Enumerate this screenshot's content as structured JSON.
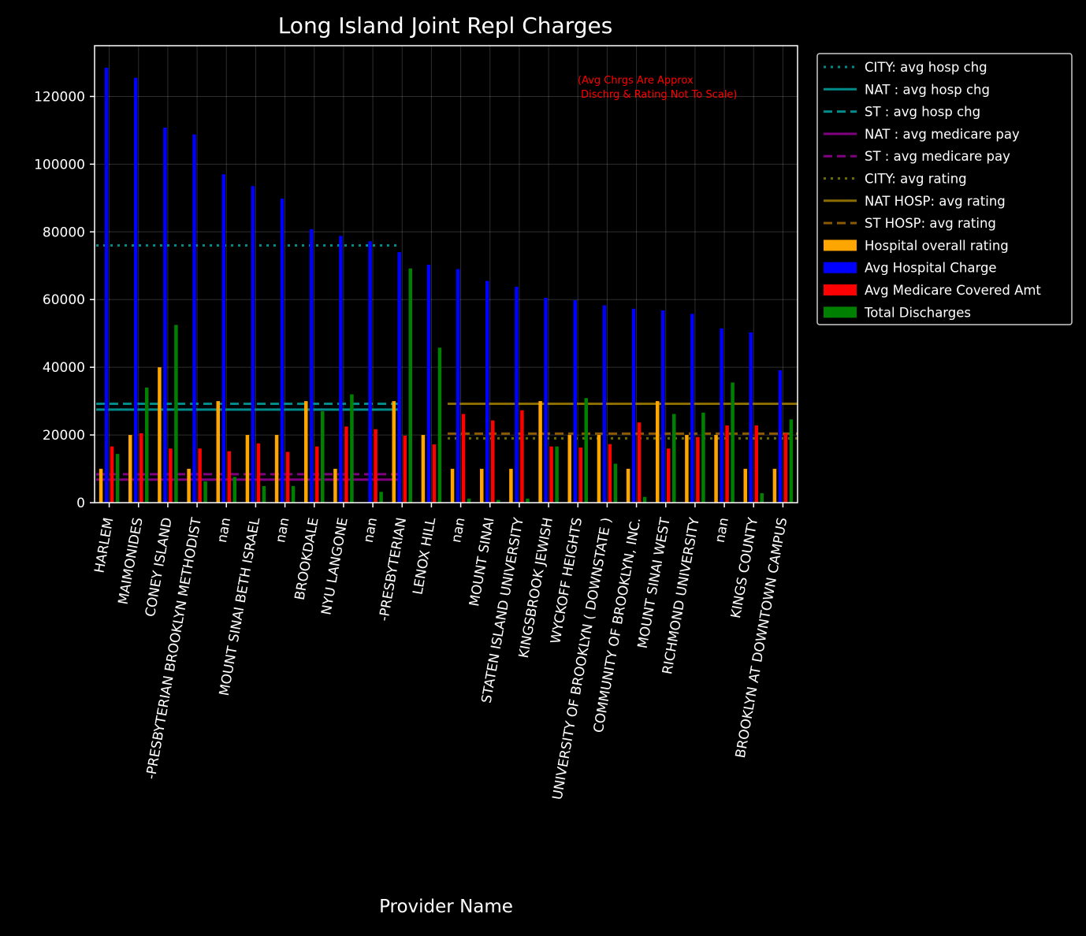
{
  "chart_data": {
    "type": "bar",
    "title": "Long Island Joint Repl Charges",
    "xlabel": "Provider Name",
    "ylabel": "",
    "ylim": [
      0,
      135000
    ],
    "yticks": [
      0,
      20000,
      40000,
      60000,
      80000,
      100000,
      120000
    ],
    "grid": true,
    "legend_position": "outside-right",
    "annotation": "(Avg Chrgs Are Approx\n Dischrg & Rating Not To Scale)",
    "annotation_color": "#ff0000",
    "categories": [
      "HARLEM",
      "MAIMONIDES",
      "CONEY ISLAND",
      "-PRESBYTERIAN BROOKLYN METHODIST",
      "nan",
      "MOUNT SINAI BETH ISRAEL",
      "nan",
      "BROOKDALE",
      "NYU LANGONE",
      "nan",
      "-PRESBYTERIAN",
      "LENOX HILL",
      "nan",
      "MOUNT SINAI",
      "STATEN ISLAND UNIVERSITY",
      "KINGSBROOK JEWISH",
      "WYCKOFF HEIGHTS",
      "UNIVERSITY  OF BROOKLYN ( DOWNSTATE )",
      "COMMUNITY  OF BROOKLYN, INC.",
      "MOUNT SINAI WEST",
      "RICHMOND UNIVERSITY",
      "nan",
      "KINGS COUNTY",
      "BROOKLYN   AT DOWNTOWN CAMPUS"
    ],
    "series": [
      {
        "name": "Hospital overall rating",
        "color": "#ffa500",
        "values": [
          10000,
          20000,
          40000,
          10000,
          30000,
          20000,
          20000,
          30000,
          10000,
          0,
          30000,
          20000,
          10000,
          10000,
          10000,
          30000,
          20000,
          20000,
          10000,
          30000,
          20000,
          20000,
          10000,
          10000
        ]
      },
      {
        "name": "Avg Hospital Charge",
        "color": "#0000ff",
        "values": [
          128500,
          125500,
          110800,
          108800,
          97000,
          93500,
          89800,
          80800,
          78800,
          77200,
          74000,
          70300,
          69000,
          65500,
          63800,
          60500,
          59800,
          58300,
          57300,
          56800,
          55800,
          51500,
          50300,
          39100
        ]
      },
      {
        "name": "Avg Medicare Covered Amt",
        "color": "#ff0000",
        "values": [
          16600,
          20500,
          16000,
          16000,
          15200,
          17500,
          15000,
          16600,
          22500,
          21700,
          19800,
          17200,
          26200,
          24300,
          27300,
          16600,
          16300,
          17300,
          23700,
          16000,
          19400,
          22800,
          22800,
          20500
        ]
      },
      {
        "name": "Total Discharges",
        "color": "#008000",
        "values": [
          14400,
          34000,
          52500,
          6300,
          7600,
          4900,
          4900,
          27000,
          32000,
          3200,
          69200,
          45800,
          1200,
          800,
          1200,
          16600,
          30900,
          11500,
          1700,
          26200,
          26600,
          35500,
          2800,
          24600
        ]
      }
    ],
    "reference_lines": [
      {
        "name": "CITY: avg hosp chg",
        "color": "#008b8b",
        "style": "dotted",
        "value": 76000,
        "from_index": 0,
        "to_index": 10
      },
      {
        "name": "NAT : avg hosp chg",
        "color": "#008b8b",
        "style": "solid",
        "value": 27500,
        "from_index": 0,
        "to_index": 10
      },
      {
        "name": "ST   : avg hosp chg",
        "color": "#008b8b",
        "style": "dashed",
        "value": 29200,
        "from_index": 0,
        "to_index": 10
      },
      {
        "name": "NAT : avg medicare pay",
        "color": "#800080",
        "style": "solid",
        "value": 6800,
        "from_index": 0,
        "to_index": 10
      },
      {
        "name": "ST   : avg medicare pay",
        "color": "#800080",
        "style": "dashed",
        "value": 8400,
        "from_index": 0,
        "to_index": 10
      },
      {
        "name": "CITY: avg rating",
        "color": "#6b6b00",
        "style": "dotted",
        "value": 19000,
        "from_index": 12,
        "to_index": 23
      },
      {
        "name": "NAT HOSP: avg rating",
        "color": "#8b6c00",
        "style": "solid",
        "value": 29200,
        "from_index": 12,
        "to_index": 23
      },
      {
        "name": "ST  HOSP: avg rating",
        "color": "#8b5a00",
        "style": "dashed",
        "value": 20400,
        "from_index": 12,
        "to_index": 23
      }
    ]
  }
}
